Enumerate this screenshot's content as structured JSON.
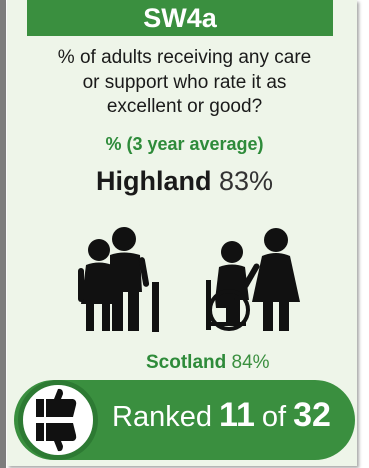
{
  "indicator": {
    "code": "SW4a",
    "question": [
      "% of adults receiving any care",
      "or support who rate it as",
      "excellent or good?"
    ],
    "measure": "% (3 year average)"
  },
  "local": {
    "name": "Highland",
    "value": "83%"
  },
  "national": {
    "name": "Scotland",
    "value": "84%"
  },
  "ranking": {
    "prefix": "Ranked",
    "rank": "11",
    "of_label": "of",
    "total": "32"
  },
  "icons": {
    "left_group": "elderly-couple-with-cane-icon",
    "right_group": "wheelchair-user-with-carer-icon",
    "rank_badge": "thumbs-up-down-icon"
  },
  "colors": {
    "accent_green": "#3a8f3f",
    "text_green": "#2e8b3a",
    "panel": "#eef5e9",
    "icon_dark": "#111111"
  }
}
